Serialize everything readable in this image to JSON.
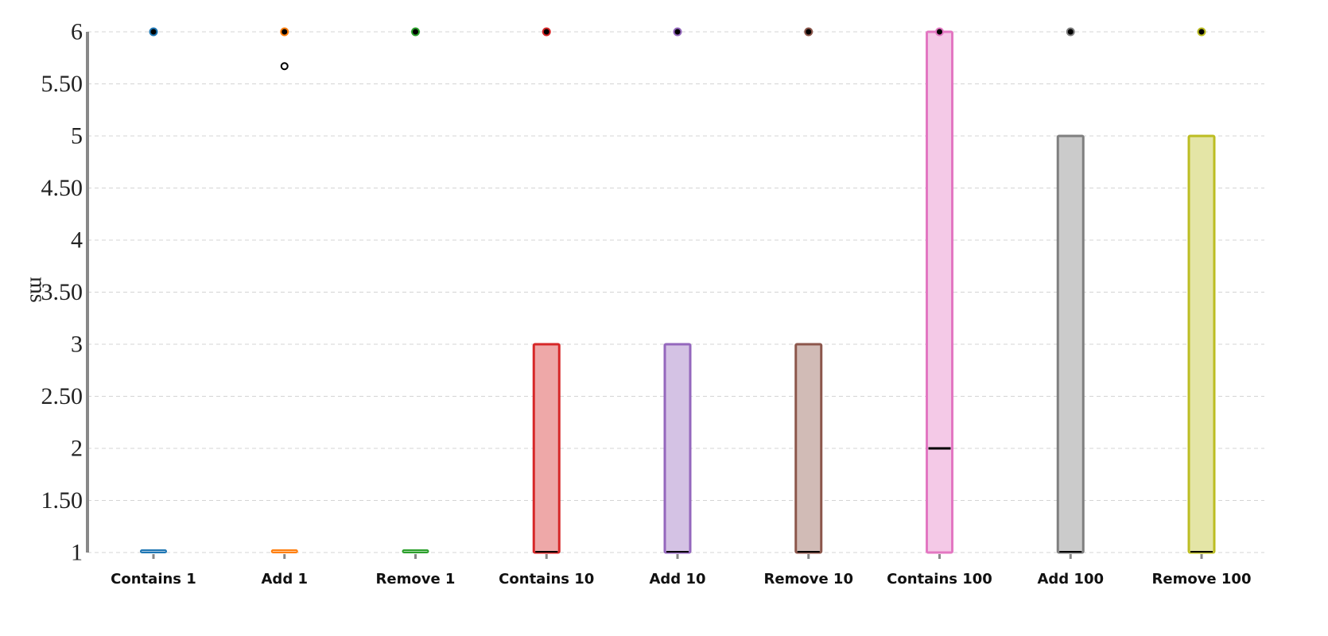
{
  "chart_data": {
    "type": "box",
    "ylabel": "ms",
    "ylim": [
      1,
      6
    ],
    "yticks": [
      1,
      1.5,
      2,
      2.5,
      3,
      3.5,
      4,
      4.5,
      5,
      5.5,
      6
    ],
    "ytick_labels": [
      "1",
      "1.50",
      "2",
      "2.50",
      "3",
      "3.50",
      "4",
      "4.50",
      "5",
      "5.50",
      "6"
    ],
    "grid": true,
    "categories": [
      "Contains 1",
      "Add 1",
      "Remove 1",
      "Contains 10",
      "Add 10",
      "Remove 10",
      "Contains 100",
      "Add 100",
      "Remove 100"
    ],
    "series": [
      {
        "color": "#1f77b4",
        "fill": "#a9c7e0",
        "q1": 1,
        "median": 1,
        "q3": 1,
        "outliers": [
          6
        ]
      },
      {
        "color": "#ff7f0e",
        "fill": "#ffcc9f",
        "q1": 1,
        "median": 1,
        "q3": 1,
        "outliers": [
          6,
          5.67
        ]
      },
      {
        "color": "#2ca02c",
        "fill": "#aad9aa",
        "q1": 1,
        "median": 1,
        "q3": 1,
        "outliers": [
          6
        ]
      },
      {
        "color": "#d62728",
        "fill": "#eea8a8",
        "q1": 1,
        "median": 1,
        "q3": 3,
        "outliers": [
          6
        ]
      },
      {
        "color": "#9467bd",
        "fill": "#d4c2e4",
        "q1": 1,
        "median": 1,
        "q3": 3,
        "outliers": [
          6
        ]
      },
      {
        "color": "#8c564b",
        "fill": "#d1bbb6",
        "q1": 1,
        "median": 1,
        "q3": 3,
        "outliers": [
          6
        ]
      },
      {
        "color": "#e377c2",
        "fill": "#f4c9e7",
        "q1": 1,
        "median": 2,
        "q3": 6,
        "outliers": [
          6
        ]
      },
      {
        "color": "#7f7f7f",
        "fill": "#cbcbcb",
        "q1": 1,
        "median": 1,
        "q3": 5,
        "outliers": [
          6
        ]
      },
      {
        "color": "#bcbd22",
        "fill": "#e4e5a6",
        "q1": 1,
        "median": 1,
        "q3": 5,
        "outliers": [
          6
        ]
      }
    ]
  }
}
